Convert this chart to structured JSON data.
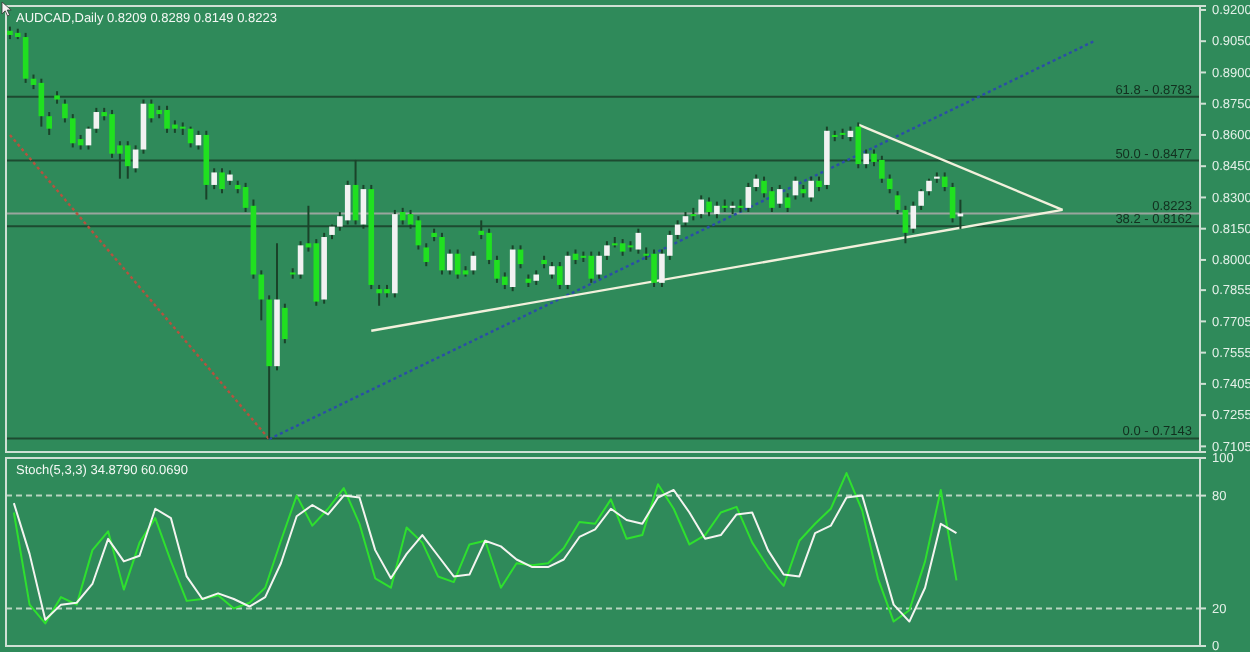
{
  "chart_data": [
    {
      "type": "candlestick",
      "title": "AUDCAD,Daily 0.8209 0.8289 0.8149 0.8223",
      "ylim": [
        0.7078,
        0.9219
      ],
      "yticks": [
        {
          "value": 0.92,
          "label": "0.9200"
        },
        {
          "value": 0.905,
          "label": "0.9050"
        },
        {
          "value": 0.89,
          "label": "0.8900"
        },
        {
          "value": 0.875,
          "label": "0.8750"
        },
        {
          "value": 0.86,
          "label": "0.8600"
        },
        {
          "value": 0.845,
          "label": "0.8450"
        },
        {
          "value": 0.83,
          "label": "0.8300"
        },
        {
          "value": 0.815,
          "label": "0.8150"
        },
        {
          "value": 0.8,
          "label": "0.8000"
        },
        {
          "value": 0.7855,
          "label": "0.7855"
        },
        {
          "value": 0.7705,
          "label": "0.7705"
        },
        {
          "value": 0.7555,
          "label": "0.7555"
        },
        {
          "value": 0.7405,
          "label": "0.7405"
        },
        {
          "value": 0.7255,
          "label": "0.7255"
        },
        {
          "value": 0.7105,
          "label": "0.7105"
        }
      ],
      "categories": [
        null,
        null,
        null,
        null,
        null,
        null,
        null,
        null,
        null,
        null,
        null,
        null,
        null,
        null,
        null,
        null,
        null,
        null,
        null,
        null,
        null,
        null,
        null,
        null,
        null,
        null,
        null,
        null,
        null,
        null,
        null,
        null,
        null,
        null,
        null,
        null,
        null,
        null,
        null,
        null,
        null,
        null,
        null,
        null,
        null,
        null,
        null,
        null,
        null,
        null,
        null,
        null,
        null,
        null,
        null,
        null,
        null,
        null,
        null,
        null,
        null,
        null,
        null,
        null,
        null,
        null,
        null,
        null,
        null,
        null,
        null,
        null,
        null,
        null,
        null,
        null,
        null,
        null,
        null,
        null,
        null,
        null,
        null,
        null,
        null,
        null,
        null,
        null,
        null,
        null,
        null,
        null,
        null,
        null,
        null,
        null,
        null,
        null,
        null,
        null,
        null,
        null,
        null,
        null,
        null,
        null,
        null,
        null,
        null,
        null,
        null,
        null,
        null,
        null,
        null,
        null,
        null,
        null,
        null,
        null,
        null,
        null,
        null,
        null,
        null,
        null,
        null,
        null,
        null,
        null,
        null,
        null,
        null,
        null,
        null,
        null,
        null,
        null,
        null,
        null,
        null,
        null,
        null,
        null,
        null,
        null,
        null,
        null,
        null,
        null,
        null,
        null
      ],
      "ohlc": [
        [
          0.91,
          0.912,
          0.906,
          0.908
        ],
        [
          0.909,
          0.911,
          0.906,
          0.907
        ],
        [
          0.907,
          0.909,
          0.885,
          0.887
        ],
        [
          0.887,
          0.889,
          0.882,
          0.884
        ],
        [
          0.885,
          0.887,
          0.864,
          0.869
        ],
        [
          0.869,
          0.871,
          0.86,
          0.863
        ],
        [
          0.879,
          0.881,
          0.875,
          0.877
        ],
        [
          0.875,
          0.877,
          0.866,
          0.868
        ],
        [
          0.868,
          0.87,
          0.854,
          0.856
        ],
        [
          0.858,
          0.86,
          0.853,
          0.855
        ],
        [
          0.855,
          0.864,
          0.853,
          0.863
        ],
        [
          0.863,
          0.873,
          0.861,
          0.871
        ],
        [
          0.871,
          0.873,
          0.867,
          0.869
        ],
        [
          0.87,
          0.872,
          0.849,
          0.851
        ],
        [
          0.855,
          0.857,
          0.839,
          0.851
        ],
        [
          0.855,
          0.857,
          0.839,
          0.845
        ],
        [
          0.844,
          0.855,
          0.842,
          0.853
        ],
        [
          0.853,
          0.877,
          0.851,
          0.875
        ],
        [
          0.875,
          0.877,
          0.866,
          0.868
        ],
        [
          0.872,
          0.874,
          0.868,
          0.87
        ],
        [
          0.872,
          0.874,
          0.861,
          0.863
        ],
        [
          0.865,
          0.867,
          0.861,
          0.863
        ],
        [
          0.864,
          0.866,
          0.86,
          0.863
        ],
        [
          0.863,
          0.864,
          0.854,
          0.856
        ],
        [
          0.855,
          0.862,
          0.853,
          0.86
        ],
        [
          0.86,
          0.862,
          0.829,
          0.836
        ],
        [
          0.836,
          0.844,
          0.834,
          0.842
        ],
        [
          0.842,
          0.844,
          0.832,
          0.834
        ],
        [
          0.838,
          0.843,
          0.836,
          0.841
        ],
        [
          0.836,
          0.838,
          0.832,
          0.834
        ],
        [
          0.835,
          0.837,
          0.823,
          0.825
        ],
        [
          0.826,
          0.829,
          0.791,
          0.793
        ],
        [
          0.793,
          0.795,
          0.771,
          0.781
        ],
        [
          0.781,
          0.783,
          0.7143,
          0.749
        ],
        [
          0.749,
          0.808,
          0.747,
          0.781
        ],
        [
          0.777,
          0.779,
          0.76,
          0.762
        ],
        [
          0.794,
          0.796,
          0.791,
          0.793
        ],
        [
          0.793,
          0.809,
          0.791,
          0.807
        ],
        [
          0.808,
          0.826,
          0.804,
          0.806
        ],
        [
          0.808,
          0.81,
          0.778,
          0.78
        ],
        [
          0.781,
          0.813,
          0.779,
          0.811
        ],
        [
          0.812,
          0.817,
          0.81,
          0.816
        ],
        [
          0.816,
          0.823,
          0.814,
          0.821
        ],
        [
          0.819,
          0.838,
          0.817,
          0.836
        ],
        [
          0.836,
          0.848,
          0.817,
          0.819
        ],
        [
          0.817,
          0.836,
          0.815,
          0.834
        ],
        [
          0.834,
          0.836,
          0.786,
          0.788
        ],
        [
          0.786,
          0.788,
          0.778,
          0.784
        ],
        [
          0.786,
          0.788,
          0.782,
          0.784
        ],
        [
          0.784,
          0.824,
          0.782,
          0.822
        ],
        [
          0.823,
          0.825,
          0.817,
          0.819
        ],
        [
          0.822,
          0.824,
          0.815,
          0.817
        ],
        [
          0.819,
          0.821,
          0.805,
          0.807
        ],
        [
          0.806,
          0.808,
          0.797,
          0.799
        ],
        [
          0.813,
          0.815,
          0.809,
          0.811
        ],
        [
          0.811,
          0.813,
          0.793,
          0.795
        ],
        [
          0.795,
          0.805,
          0.793,
          0.803
        ],
        [
          0.803,
          0.805,
          0.791,
          0.793
        ],
        [
          0.795,
          0.797,
          0.792,
          0.793
        ],
        [
          0.795,
          0.804,
          0.793,
          0.802
        ],
        [
          0.814,
          0.819,
          0.81,
          0.812
        ],
        [
          0.813,
          0.815,
          0.798,
          0.8
        ],
        [
          0.8,
          0.802,
          0.789,
          0.791
        ],
        [
          0.792,
          0.794,
          0.786,
          0.788
        ],
        [
          0.787,
          0.807,
          0.785,
          0.805
        ],
        [
          0.805,
          0.807,
          0.796,
          0.798
        ],
        [
          0.791,
          0.793,
          0.787,
          0.789
        ],
        [
          0.79,
          0.795,
          0.788,
          0.793
        ],
        [
          0.8,
          0.802,
          0.796,
          0.798
        ],
        [
          0.793,
          0.799,
          0.791,
          0.797
        ],
        [
          0.797,
          0.799,
          0.786,
          0.788
        ],
        [
          0.788,
          0.804,
          0.786,
          0.802
        ],
        [
          0.803,
          0.805,
          0.798,
          0.8
        ],
        [
          0.802,
          0.804,
          0.799,
          0.801
        ],
        [
          0.802,
          0.804,
          0.789,
          0.791
        ],
        [
          0.793,
          0.804,
          0.791,
          0.802
        ],
        [
          0.802,
          0.809,
          0.8,
          0.807
        ],
        [
          0.808,
          0.811,
          0.806,
          0.807
        ],
        [
          0.808,
          0.81,
          0.802,
          0.804
        ],
        [
          0.807,
          0.809,
          0.804,
          0.806
        ],
        [
          0.805,
          0.815,
          0.803,
          0.813
        ],
        [
          0.803,
          0.806,
          0.8,
          0.802
        ],
        [
          0.803,
          0.805,
          0.787,
          0.789
        ],
        [
          0.789,
          0.805,
          0.787,
          0.803
        ],
        [
          0.802,
          0.814,
          0.8,
          0.812
        ],
        [
          0.812,
          0.819,
          0.81,
          0.817
        ],
        [
          0.818,
          0.823,
          0.816,
          0.821
        ],
        [
          0.822,
          0.825,
          0.819,
          0.821
        ],
        [
          0.822,
          0.831,
          0.82,
          0.829
        ],
        [
          0.828,
          0.83,
          0.821,
          0.823
        ],
        [
          0.822,
          0.828,
          0.82,
          0.826
        ],
        [
          0.826,
          0.829,
          0.823,
          0.825
        ],
        [
          0.825,
          0.828,
          0.822,
          0.826
        ],
        [
          0.826,
          0.829,
          0.823,
          0.825
        ],
        [
          0.825,
          0.837,
          0.823,
          0.835
        ],
        [
          0.835,
          0.841,
          0.833,
          0.839
        ],
        [
          0.838,
          0.84,
          0.83,
          0.832
        ],
        [
          0.833,
          0.835,
          0.823,
          0.825
        ],
        [
          0.827,
          0.836,
          0.825,
          0.834
        ],
        [
          0.83,
          0.832,
          0.823,
          0.825
        ],
        [
          0.831,
          0.84,
          0.829,
          0.838
        ],
        [
          0.834,
          0.836,
          0.83,
          0.832
        ],
        [
          0.83,
          0.84,
          0.828,
          0.838
        ],
        [
          0.838,
          0.84,
          0.833,
          0.835
        ],
        [
          0.836,
          0.864,
          0.834,
          0.862
        ],
        [
          0.86,
          0.862,
          0.857,
          0.859
        ],
        [
          0.861,
          0.863,
          0.858,
          0.86
        ],
        [
          0.859,
          0.864,
          0.857,
          0.862
        ],
        [
          0.864,
          0.866,
          0.844,
          0.846
        ],
        [
          0.846,
          0.853,
          0.844,
          0.851
        ],
        [
          0.851,
          0.853,
          0.845,
          0.847
        ],
        [
          0.848,
          0.85,
          0.837,
          0.839
        ],
        [
          0.839,
          0.841,
          0.832,
          0.834
        ],
        [
          0.831,
          0.833,
          0.822,
          0.824
        ],
        [
          0.824,
          0.826,
          0.808,
          0.813
        ],
        [
          0.815,
          0.828,
          0.813,
          0.826
        ],
        [
          0.826,
          0.834,
          0.824,
          0.833
        ],
        [
          0.833,
          0.839,
          0.831,
          0.838
        ],
        [
          0.839,
          0.842,
          0.837,
          0.84
        ],
        [
          0.84,
          0.842,
          0.833,
          0.835
        ],
        [
          0.835,
          0.837,
          0.818,
          0.82
        ],
        [
          0.8209,
          0.8289,
          0.8149,
          0.8223
        ],
        null,
        null,
        null,
        null,
        null,
        null,
        null,
        null,
        null,
        null,
        null,
        null,
        null,
        null,
        null,
        null,
        null,
        null,
        null,
        null,
        null,
        null,
        null,
        null,
        null,
        null,
        null,
        null,
        null,
        null
      ],
      "ref_lines": [
        {
          "axis": "y",
          "value": 0.8783,
          "color": "#1d4a30"
        },
        {
          "axis": "y",
          "value": 0.8477,
          "color": "#1d4a30"
        },
        {
          "axis": "y",
          "value": 0.8223,
          "color": "#9aa59e"
        },
        {
          "axis": "y",
          "value": 0.8162,
          "color": "#1d4a30"
        },
        {
          "axis": "y",
          "value": 0.7143,
          "color": "#1d4a30"
        }
      ],
      "annotations": [
        {
          "text": "61.8 - 0.8783",
          "y": 0.8783
        },
        {
          "text": "50.0 - 0.8477",
          "y": 0.8477
        },
        {
          "text": "0.8223",
          "y": 0.8223
        },
        {
          "text": "38.2 - 0.8162",
          "y": 0.8162
        },
        {
          "text": "0.0 - 0.7143",
          "y": 0.7143
        }
      ],
      "series": [
        {
          "type": "line",
          "color": "#b5523e",
          "line_style": "dotted",
          "values": [
            0.86,
            null,
            null,
            null,
            null,
            null,
            null,
            null,
            null,
            null,
            null,
            null,
            null,
            null,
            null,
            null,
            null,
            null,
            null,
            null,
            null,
            null,
            null,
            null,
            null,
            null,
            null,
            null,
            null,
            null,
            null,
            null,
            null,
            0.714,
            null,
            null,
            null,
            null,
            null,
            null,
            null,
            null,
            null,
            null,
            null,
            null,
            null,
            null,
            null,
            null,
            null,
            null,
            null,
            null,
            null,
            null,
            null,
            null,
            null,
            null,
            null,
            null,
            null,
            null,
            null,
            null,
            null,
            null,
            null,
            null,
            null,
            null,
            null,
            null,
            null,
            null,
            null,
            null,
            null,
            null,
            null,
            null,
            null,
            null,
            null,
            null,
            null,
            null,
            null,
            null,
            null,
            null,
            null,
            null,
            null,
            null,
            null,
            null,
            null,
            null,
            null,
            null,
            null,
            null,
            null,
            null,
            null,
            null,
            null,
            null,
            null,
            null,
            null,
            null,
            null,
            null,
            null,
            null,
            null,
            null,
            null,
            null,
            null,
            null,
            null,
            null,
            null,
            null,
            null,
            null,
            null,
            null,
            null,
            null,
            null,
            null,
            null,
            null,
            null,
            null,
            null,
            null,
            null,
            null,
            null,
            null,
            null,
            null,
            null,
            null,
            null,
            null
          ]
        },
        {
          "type": "line",
          "color": "#2b4da8",
          "line_style": "dotted",
          "values": [
            null,
            null,
            null,
            null,
            null,
            null,
            null,
            null,
            null,
            null,
            null,
            null,
            null,
            null,
            null,
            null,
            null,
            null,
            null,
            null,
            null,
            null,
            null,
            null,
            null,
            null,
            null,
            null,
            null,
            null,
            null,
            null,
            null,
            0.714,
            null,
            null,
            null,
            null,
            null,
            null,
            null,
            null,
            null,
            null,
            null,
            null,
            null,
            null,
            null,
            null,
            null,
            null,
            null,
            null,
            null,
            null,
            null,
            null,
            null,
            null,
            null,
            null,
            null,
            null,
            null,
            null,
            null,
            null,
            null,
            null,
            null,
            null,
            null,
            null,
            null,
            null,
            null,
            null,
            null,
            null,
            null,
            null,
            null,
            null,
            null,
            null,
            null,
            null,
            null,
            null,
            null,
            null,
            null,
            null,
            null,
            null,
            null,
            null,
            null,
            null,
            null,
            null,
            null,
            null,
            null,
            null,
            null,
            null,
            null,
            null,
            null,
            null,
            null,
            null,
            null,
            null,
            null,
            null,
            null,
            null,
            null,
            null,
            null,
            null,
            null,
            null,
            null,
            null,
            null,
            null,
            null,
            null,
            null,
            null,
            null,
            null,
            null,
            null,
            0.905,
            null,
            null,
            null,
            null,
            null,
            null,
            null,
            null,
            null,
            null,
            null,
            null,
            null
          ]
        },
        {
          "type": "line",
          "color": "#f2f0dc",
          "line_style": "solid",
          "values": [
            null,
            null,
            null,
            null,
            null,
            null,
            null,
            null,
            null,
            null,
            null,
            null,
            null,
            null,
            null,
            null,
            null,
            null,
            null,
            null,
            null,
            null,
            null,
            null,
            null,
            null,
            null,
            null,
            null,
            null,
            null,
            null,
            null,
            null,
            null,
            null,
            null,
            null,
            null,
            null,
            null,
            null,
            null,
            null,
            null,
            null,
            0.766,
            null,
            null,
            null,
            null,
            null,
            null,
            null,
            null,
            null,
            null,
            null,
            null,
            null,
            null,
            null,
            null,
            null,
            null,
            null,
            null,
            null,
            null,
            null,
            null,
            null,
            null,
            null,
            null,
            null,
            null,
            null,
            null,
            null,
            null,
            null,
            null,
            null,
            null,
            null,
            null,
            null,
            null,
            null,
            null,
            null,
            null,
            null,
            null,
            null,
            null,
            null,
            null,
            null,
            null,
            null,
            null,
            null,
            null,
            null,
            null,
            null,
            null,
            null,
            null,
            null,
            null,
            null,
            null,
            null,
            null,
            null,
            null,
            null,
            null,
            null,
            null,
            null,
            null,
            null,
            null,
            null,
            null,
            null,
            null,
            null,
            null,
            null,
            0.824,
            null,
            null,
            null,
            null,
            null,
            null,
            null,
            null,
            null,
            null,
            null,
            null,
            null,
            null,
            null,
            null,
            null
          ]
        },
        {
          "type": "line",
          "color": "#f2f0dc",
          "line_style": "solid",
          "values": [
            null,
            null,
            null,
            null,
            null,
            null,
            null,
            null,
            null,
            null,
            null,
            null,
            null,
            null,
            null,
            null,
            null,
            null,
            null,
            null,
            null,
            null,
            null,
            null,
            null,
            null,
            null,
            null,
            null,
            null,
            null,
            null,
            null,
            null,
            null,
            null,
            null,
            null,
            null,
            null,
            null,
            null,
            null,
            null,
            null,
            null,
            null,
            null,
            null,
            null,
            null,
            null,
            null,
            null,
            null,
            null,
            null,
            null,
            null,
            null,
            null,
            null,
            null,
            null,
            null,
            null,
            null,
            null,
            null,
            null,
            null,
            null,
            null,
            null,
            null,
            null,
            null,
            null,
            null,
            null,
            null,
            null,
            null,
            null,
            null,
            null,
            null,
            null,
            null,
            null,
            null,
            null,
            null,
            null,
            null,
            null,
            null,
            null,
            null,
            null,
            null,
            null,
            null,
            null,
            null,
            null,
            null,
            null,
            0.865,
            null,
            null,
            null,
            null,
            null,
            null,
            null,
            null,
            null,
            null,
            null,
            null,
            null,
            null,
            null,
            null,
            null,
            null,
            null,
            null,
            null,
            null,
            null,
            null,
            null,
            0.824,
            null,
            null,
            null,
            null,
            null,
            null,
            null,
            null,
            null,
            null,
            null,
            null,
            null,
            null,
            null,
            null,
            null
          ]
        }
      ]
    },
    {
      "type": "line",
      "title": "Stoch(5,3,3) 34.8790 60.0690",
      "ylim": [
        0,
        100
      ],
      "yticks": [
        0,
        20,
        80,
        100
      ],
      "categories": [
        null,
        null,
        null,
        null,
        null,
        null,
        null,
        null,
        null,
        null,
        null,
        null,
        null,
        null,
        null,
        null,
        null,
        null,
        null,
        null,
        null,
        null,
        null,
        null,
        null,
        null,
        null,
        null,
        null,
        null,
        null,
        null,
        null,
        null,
        null,
        null,
        null,
        null,
        null,
        null,
        null,
        null,
        null,
        null,
        null,
        null,
        null,
        null,
        null,
        null,
        null,
        null,
        null,
        null,
        null,
        null,
        null,
        null,
        null,
        null,
        null,
        null,
        null,
        null,
        null,
        null,
        null,
        null,
        null,
        null,
        null,
        null,
        null,
        null,
        null,
        null
      ],
      "ref_lines": [
        {
          "axis": "y",
          "value": 20,
          "color": "#b8d4c0",
          "line_style": "dashed"
        },
        {
          "axis": "y",
          "value": 80,
          "color": "#b8d4c0",
          "line_style": "dashed"
        }
      ],
      "series": [
        {
          "color": "#2ee02e",
          "values": [
            71,
            22,
            12,
            26,
            22,
            51,
            61,
            30,
            55,
            68,
            45,
            24,
            25,
            27,
            20,
            23,
            31,
            56,
            80,
            64,
            73,
            84,
            65,
            36,
            31,
            63,
            55,
            37,
            34,
            54,
            56,
            31,
            44,
            43,
            44,
            52,
            66,
            65,
            78,
            57,
            59,
            86,
            73,
            54,
            59,
            71,
            74,
            55,
            42,
            32,
            56,
            65,
            73,
            92,
            72,
            36,
            13,
            19,
            45,
            83,
            34.879,
            null,
            null,
            null,
            null,
            null,
            null,
            null,
            null,
            null,
            null,
            null,
            null,
            null,
            null,
            null
          ]
        },
        {
          "color": "#f4f4f0",
          "values": [
            76,
            49,
            14,
            22,
            23,
            33,
            57,
            45,
            48,
            73,
            68,
            37,
            25,
            28,
            25,
            21,
            26,
            44,
            69,
            75,
            70,
            80,
            79,
            51,
            36,
            49,
            59,
            48,
            37,
            38,
            56,
            53,
            46,
            42,
            42,
            46,
            58,
            62,
            73,
            67,
            65,
            79,
            83,
            71,
            57,
            59,
            70,
            71,
            51,
            38,
            37,
            60,
            64,
            79,
            80,
            51,
            22,
            13,
            31,
            65,
            60.069,
            null,
            null,
            null,
            null,
            null,
            null,
            null,
            null,
            null,
            null,
            null,
            null,
            null,
            null,
            null
          ]
        }
      ]
    }
  ]
}
